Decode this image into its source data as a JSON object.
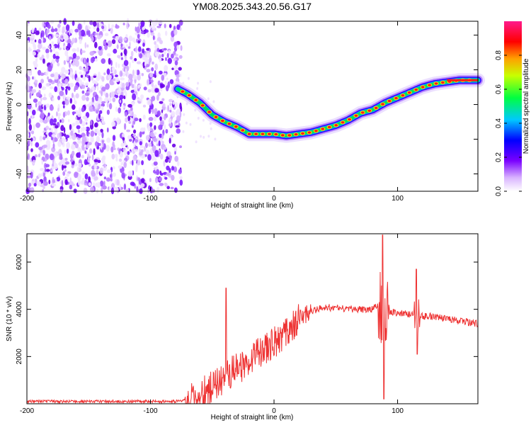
{
  "title": "YM08.2025.343.20.56.G17",
  "chart_data": [
    {
      "type": "heatmap",
      "xlabel": "Height of straight line (km)",
      "ylabel": "Frequency (Hz)",
      "xlim": [
        -200,
        165
      ],
      "ylim": [
        -50,
        48
      ],
      "xticks": [
        -200,
        -100,
        0,
        100
      ],
      "yticks": [
        -40,
        -20,
        0,
        20,
        40
      ],
      "noise_region_x": [
        -200,
        -75
      ],
      "ridge": [
        {
          "x": -78,
          "y": 9
        },
        {
          "x": -70,
          "y": 6
        },
        {
          "x": -60,
          "y": 1
        },
        {
          "x": -50,
          "y": -6
        },
        {
          "x": -40,
          "y": -10
        },
        {
          "x": -30,
          "y": -13
        },
        {
          "x": -20,
          "y": -17
        },
        {
          "x": -10,
          "y": -17
        },
        {
          "x": 0,
          "y": -17
        },
        {
          "x": 10,
          "y": -18
        },
        {
          "x": 20,
          "y": -17
        },
        {
          "x": 30,
          "y": -16
        },
        {
          "x": 40,
          "y": -14
        },
        {
          "x": 50,
          "y": -12
        },
        {
          "x": 60,
          "y": -9
        },
        {
          "x": 70,
          "y": -5
        },
        {
          "x": 80,
          "y": -3
        },
        {
          "x": 90,
          "y": 1
        },
        {
          "x": 100,
          "y": 4
        },
        {
          "x": 110,
          "y": 7
        },
        {
          "x": 120,
          "y": 10
        },
        {
          "x": 130,
          "y": 12
        },
        {
          "x": 140,
          "y": 13
        },
        {
          "x": 150,
          "y": 14
        },
        {
          "x": 165,
          "y": 14
        }
      ],
      "colorbar": {
        "label": "Normalized spectral amplitude",
        "range": [
          0.0,
          1.0
        ],
        "ticks": [
          "0.0",
          "0.2",
          "0.4",
          "0.6",
          "0.8"
        ]
      }
    },
    {
      "type": "line",
      "xlabel": "Height of straight line (km)",
      "ylabel": "SNR (10 * v/v)",
      "xlim": [
        -200,
        165
      ],
      "ylim": [
        0,
        7200
      ],
      "xticks": [
        -200,
        -100,
        0,
        100
      ],
      "yticks": [
        2000,
        4000,
        6000
      ],
      "color": "#ee3333",
      "series": [
        {
          "name": "SNR",
          "x": [
            -200,
            -80,
            -72,
            -60,
            -50,
            -40,
            -30,
            -20,
            -10,
            0,
            10,
            20,
            30,
            40,
            50,
            60,
            70,
            80,
            85,
            90,
            95,
            100,
            110,
            120,
            130,
            140,
            150,
            165
          ],
          "values": [
            100,
            100,
            150,
            400,
            700,
            1100,
            1500,
            1800,
            2200,
            2600,
            3100,
            3600,
            3900,
            4100,
            4050,
            4000,
            4000,
            4000,
            4200,
            4000,
            3900,
            3800,
            3800,
            3700,
            3700,
            3600,
            3500,
            3400
          ]
        }
      ],
      "spikes": [
        {
          "x": -39,
          "y": 4900
        },
        {
          "x": 88,
          "y": 7150
        },
        {
          "x": 89,
          "y": 200
        },
        {
          "x": 115,
          "y": 5700
        },
        {
          "x": 116,
          "y": 2100
        }
      ]
    }
  ]
}
